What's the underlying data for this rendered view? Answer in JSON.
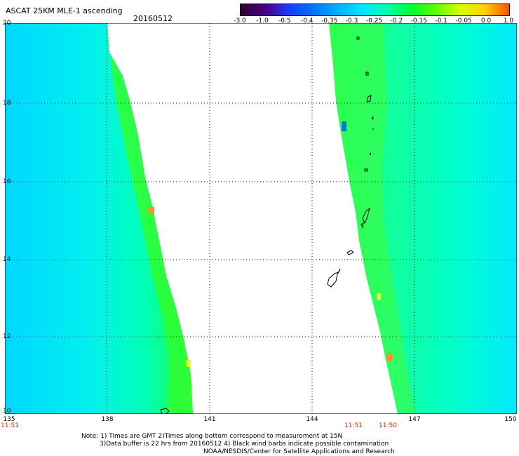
{
  "header": {
    "title": "ASCAT 25KM MLE-1 ascending",
    "date": "20160512"
  },
  "colorbar": {
    "ticks": [
      "-3.0",
      "-1.0",
      "-0.5",
      "-0.4",
      "-0.35",
      "-0.3",
      "-0.25",
      "-0.2",
      "-0.15",
      "-0.1",
      "-0.05",
      "0.0",
      "1.0"
    ],
    "colors": [
      "#330033",
      "#4b0082",
      "#1a3cff",
      "#0078ff",
      "#00b0ff",
      "#00e8ff",
      "#00ffb0",
      "#00ff30",
      "#60ff00",
      "#d8ff00",
      "#ffd000",
      "#ff5000"
    ]
  },
  "axes": {
    "lat_labels": [
      "20",
      "18",
      "16",
      "14",
      "12",
      "10"
    ],
    "lon_labels": [
      "135",
      "138",
      "141",
      "144",
      "147",
      "150"
    ],
    "lat_range": [
      10,
      20
    ],
    "lon_range": [
      135,
      150
    ]
  },
  "times": {
    "left": "11:51",
    "mid": "11:51",
    "right": "11:50"
  },
  "notes": {
    "line1": "Note: 1) Times are GMT 2)Times along bottom correspond to measurement at 15N",
    "line2": "3)Data buffer is 22 hrs from 20160512 4) Black wind barbs indicate possible contamination",
    "line3": "NOAA/NESDIS/Center for Satellite Applications and Research"
  }
}
